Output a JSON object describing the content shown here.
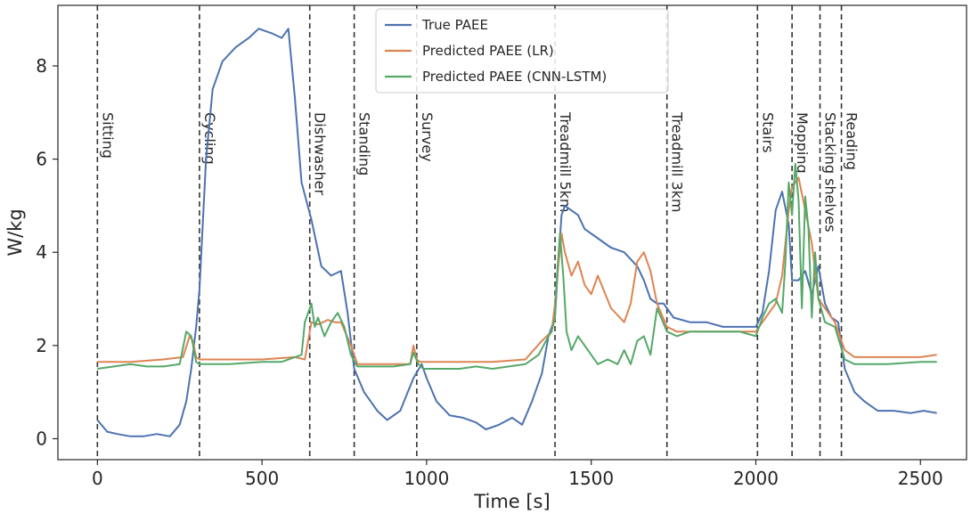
{
  "chart_data": {
    "type": "line",
    "title": "",
    "xlabel": "Time [s]",
    "ylabel": "W/kg",
    "xlim": [
      -120,
      2640
    ],
    "ylim": [
      -0.45,
      9.3
    ],
    "xticks": [
      0,
      500,
      1000,
      1500,
      2000,
      2500
    ],
    "yticks": [
      0,
      2,
      4,
      6,
      8
    ],
    "grid": false,
    "legend_position": "top-center",
    "activities": [
      {
        "t": 0,
        "label": "Sitting"
      },
      {
        "t": 310,
        "label": "Cycling"
      },
      {
        "t": 645,
        "label": "Dishwasher"
      },
      {
        "t": 780,
        "label": "Standing"
      },
      {
        "t": 970,
        "label": "Survey"
      },
      {
        "t": 1390,
        "label": "Treadmill 5km"
      },
      {
        "t": 1730,
        "label": "Treadmill 3km"
      },
      {
        "t": 2005,
        "label": "Stairs"
      },
      {
        "t": 2110,
        "label": "Mopping"
      },
      {
        "t": 2195,
        "label": "Stacking shelves"
      },
      {
        "t": 2260,
        "label": "Reading"
      }
    ],
    "series": [
      {
        "name": "True PAEE",
        "color": "#4c72b0",
        "x": [
          0,
          30,
          60,
          100,
          140,
          180,
          220,
          250,
          270,
          285,
          300,
          310,
          330,
          350,
          380,
          420,
          460,
          490,
          530,
          560,
          580,
          600,
          620,
          650,
          680,
          710,
          740,
          760,
          780,
          810,
          850,
          880,
          920,
          960,
          985,
          1000,
          1030,
          1070,
          1110,
          1150,
          1180,
          1220,
          1260,
          1290,
          1320,
          1350,
          1370,
          1390,
          1400,
          1410,
          1420,
          1440,
          1460,
          1480,
          1520,
          1560,
          1600,
          1640,
          1660,
          1680,
          1700,
          1720,
          1750,
          1800,
          1850,
          1900,
          1950,
          2000,
          2020,
          2040,
          2060,
          2080,
          2100,
          2110,
          2130,
          2150,
          2170,
          2190,
          2210,
          2230,
          2250,
          2270,
          2300,
          2330,
          2370,
          2420,
          2470,
          2510,
          2550
        ],
        "y": [
          0.4,
          0.15,
          0.1,
          0.05,
          0.05,
          0.1,
          0.05,
          0.3,
          0.8,
          1.5,
          2.4,
          3.2,
          6.0,
          7.5,
          8.1,
          8.4,
          8.6,
          8.8,
          8.7,
          8.6,
          8.8,
          7.3,
          5.5,
          4.7,
          3.7,
          3.5,
          3.6,
          2.7,
          1.5,
          1.0,
          0.6,
          0.4,
          0.6,
          1.3,
          1.6,
          1.3,
          0.8,
          0.5,
          0.45,
          0.35,
          0.2,
          0.3,
          0.45,
          0.3,
          0.8,
          1.4,
          2.2,
          2.6,
          3.8,
          4.8,
          5.0,
          4.9,
          4.8,
          4.5,
          4.3,
          4.1,
          4.0,
          3.7,
          3.4,
          3.0,
          2.9,
          2.9,
          2.6,
          2.5,
          2.5,
          2.4,
          2.4,
          2.4,
          2.7,
          3.6,
          4.9,
          5.3,
          4.6,
          3.4,
          3.4,
          3.6,
          3.1,
          3.7,
          2.9,
          2.6,
          2.5,
          1.5,
          1.0,
          0.8,
          0.6,
          0.6,
          0.55,
          0.6,
          0.55
        ]
      },
      {
        "name": "Predicted PAEE (LR)",
        "color": "#dd8452",
        "x": [
          0,
          100,
          200,
          260,
          280,
          290,
          300,
          310,
          400,
          500,
          600,
          630,
          650,
          670,
          700,
          720,
          740,
          770,
          790,
          900,
          950,
          960,
          970,
          980,
          1000,
          1100,
          1200,
          1300,
          1350,
          1380,
          1390,
          1400,
          1410,
          1420,
          1440,
          1460,
          1480,
          1500,
          1520,
          1560,
          1600,
          1620,
          1640,
          1660,
          1680,
          1700,
          1730,
          1760,
          1800,
          1850,
          1900,
          1950,
          2000,
          2020,
          2040,
          2060,
          2080,
          2100,
          2110,
          2130,
          2150,
          2170,
          2190,
          2210,
          2240,
          2270,
          2300,
          2400,
          2500,
          2550
        ],
        "y": [
          1.65,
          1.65,
          1.7,
          1.75,
          2.2,
          2.1,
          1.75,
          1.7,
          1.7,
          1.7,
          1.75,
          1.7,
          2.5,
          2.45,
          2.55,
          2.5,
          2.5,
          2.0,
          1.6,
          1.6,
          1.6,
          2.0,
          1.7,
          1.65,
          1.65,
          1.65,
          1.65,
          1.7,
          2.1,
          2.3,
          2.9,
          3.7,
          4.4,
          4.0,
          3.5,
          3.8,
          3.3,
          3.1,
          3.5,
          2.8,
          2.5,
          2.9,
          3.8,
          4.0,
          3.6,
          2.9,
          2.4,
          2.3,
          2.3,
          2.3,
          2.3,
          2.3,
          2.3,
          2.5,
          2.7,
          2.9,
          3.5,
          4.9,
          5.4,
          5.6,
          4.9,
          4.2,
          3.0,
          2.8,
          2.5,
          1.9,
          1.75,
          1.75,
          1.75,
          1.8
        ]
      },
      {
        "name": "Predicted PAEE (CNN-LSTM)",
        "color": "#55a868",
        "x": [
          0,
          50,
          100,
          150,
          200,
          250,
          270,
          285,
          300,
          310,
          400,
          500,
          560,
          620,
          630,
          650,
          660,
          670,
          690,
          710,
          730,
          750,
          770,
          790,
          850,
          900,
          950,
          960,
          975,
          990,
          1050,
          1100,
          1150,
          1200,
          1250,
          1300,
          1340,
          1370,
          1380,
          1390,
          1395,
          1405,
          1415,
          1425,
          1440,
          1460,
          1490,
          1520,
          1550,
          1580,
          1600,
          1620,
          1640,
          1660,
          1680,
          1700,
          1730,
          1760,
          1800,
          1850,
          1900,
          1950,
          2000,
          2020,
          2040,
          2060,
          2080,
          2090,
          2100,
          2110,
          2120,
          2130,
          2140,
          2150,
          2160,
          2170,
          2180,
          2190,
          2210,
          2240,
          2270,
          2300,
          2400,
          2500,
          2550
        ],
        "y": [
          1.5,
          1.55,
          1.6,
          1.55,
          1.55,
          1.6,
          2.3,
          2.2,
          1.65,
          1.6,
          1.6,
          1.65,
          1.65,
          1.8,
          2.5,
          2.9,
          2.4,
          2.6,
          2.2,
          2.5,
          2.7,
          2.4,
          1.8,
          1.55,
          1.55,
          1.55,
          1.6,
          1.85,
          1.6,
          1.5,
          1.5,
          1.5,
          1.55,
          1.5,
          1.55,
          1.6,
          1.8,
          2.2,
          2.3,
          2.6,
          3.4,
          4.4,
          3.5,
          2.3,
          1.9,
          2.2,
          1.9,
          1.6,
          1.7,
          1.6,
          1.9,
          1.6,
          2.1,
          2.2,
          1.8,
          2.8,
          2.3,
          2.2,
          2.3,
          2.3,
          2.3,
          2.3,
          2.2,
          2.6,
          2.9,
          3.0,
          2.7,
          3.8,
          5.5,
          4.8,
          5.9,
          5.1,
          2.8,
          5.2,
          4.5,
          2.6,
          4.0,
          3.0,
          2.5,
          2.4,
          1.7,
          1.6,
          1.6,
          1.65,
          1.65
        ]
      }
    ]
  }
}
